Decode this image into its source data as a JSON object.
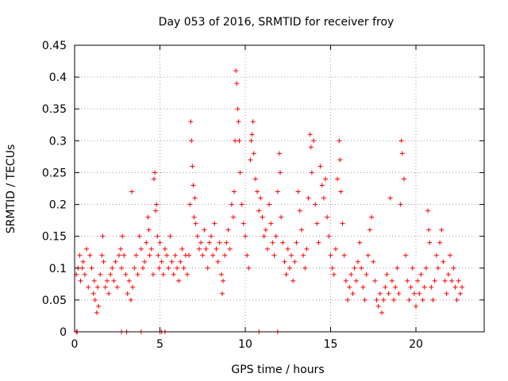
{
  "chart_data": {
    "type": "scatter",
    "title": "Day 053 of 2016, SRMTID for receiver froy",
    "xlabel": "GPS time / hours",
    "ylabel": "SRMTID / TECUs",
    "xlim": [
      0,
      24
    ],
    "ylim": [
      0,
      0.45
    ],
    "xticks": [
      0,
      5,
      10,
      15,
      20
    ],
    "yticks": [
      0,
      0.05,
      0.1,
      0.15,
      0.2,
      0.25,
      0.3,
      0.35,
      0.4,
      0.45
    ],
    "xtick_labels": [
      "0",
      "5",
      "10",
      "15",
      "20"
    ],
    "ytick_labels": [
      "0",
      "0.05",
      "0.1",
      "0.15",
      "0.2",
      "0.25",
      "0.3",
      "0.35",
      "0.4",
      "0.45"
    ],
    "grid": true,
    "marker": "+",
    "marker_color": "#ff0000",
    "series": [
      {
        "name": "SRMTID",
        "points": [
          [
            0.1,
            0.09
          ],
          [
            0.2,
            0.1
          ],
          [
            0.3,
            0.12
          ],
          [
            0.35,
            0.08
          ],
          [
            0.45,
            0.1
          ],
          [
            0.5,
            0.11
          ],
          [
            0.6,
            0.09
          ],
          [
            0.7,
            0.13
          ],
          [
            0.8,
            0.07
          ],
          [
            0.9,
            0.12
          ],
          [
            1.0,
            0.1
          ],
          [
            1.1,
            0.06
          ],
          [
            1.15,
            0.08
          ],
          [
            1.2,
            0.05
          ],
          [
            1.3,
            0.03
          ],
          [
            1.35,
            0.07
          ],
          [
            1.4,
            0.04
          ],
          [
            1.5,
            0.09
          ],
          [
            1.6,
            0.12
          ],
          [
            1.65,
            0.15
          ],
          [
            1.7,
            0.11
          ],
          [
            1.8,
            0.07
          ],
          [
            1.9,
            0.08
          ],
          [
            2.0,
            0.06
          ],
          [
            2.1,
            0.09
          ],
          [
            2.2,
            0.1
          ],
          [
            2.3,
            0.08
          ],
          [
            2.4,
            0.11
          ],
          [
            2.5,
            0.07
          ],
          [
            2.6,
            0.12
          ],
          [
            2.7,
            0.13
          ],
          [
            2.75,
            0.1
          ],
          [
            2.8,
            0.15
          ],
          [
            2.9,
            0.12
          ],
          [
            3.0,
            0.09
          ],
          [
            3.1,
            0.06
          ],
          [
            3.2,
            0.08
          ],
          [
            3.3,
            0.05
          ],
          [
            3.35,
            0.22
          ],
          [
            3.4,
            0.07
          ],
          [
            3.5,
            0.1
          ],
          [
            3.6,
            0.12
          ],
          [
            3.7,
            0.09
          ],
          [
            3.8,
            0.15
          ],
          [
            3.9,
            0.13
          ],
          [
            4.0,
            0.1
          ],
          [
            4.1,
            0.11
          ],
          [
            4.2,
            0.14
          ],
          [
            4.3,
            0.18
          ],
          [
            4.35,
            0.16
          ],
          [
            4.4,
            0.12
          ],
          [
            4.5,
            0.13
          ],
          [
            4.6,
            0.09
          ],
          [
            4.65,
            0.24
          ],
          [
            4.7,
            0.25
          ],
          [
            4.75,
            0.19
          ],
          [
            4.8,
            0.2
          ],
          [
            4.85,
            0.15
          ],
          [
            4.9,
            0.12
          ],
          [
            4.95,
            0.1
          ],
          [
            5.0,
            0.14
          ],
          [
            5.1,
            0.11
          ],
          [
            5.2,
            0.09
          ],
          [
            5.3,
            0.13
          ],
          [
            5.4,
            0.12
          ],
          [
            5.5,
            0.1
          ],
          [
            5.6,
            0.15
          ],
          [
            5.7,
            0.11
          ],
          [
            5.8,
            0.09
          ],
          [
            5.9,
            0.12
          ],
          [
            6.0,
            0.1
          ],
          [
            6.1,
            0.08
          ],
          [
            6.2,
            0.11
          ],
          [
            6.3,
            0.13
          ],
          [
            6.4,
            0.1
          ],
          [
            6.5,
            0.12
          ],
          [
            6.6,
            0.09
          ],
          [
            6.7,
            0.12
          ],
          [
            6.75,
            0.2
          ],
          [
            6.8,
            0.33
          ],
          [
            6.85,
            0.3
          ],
          [
            6.9,
            0.26
          ],
          [
            6.95,
            0.23
          ],
          [
            7.0,
            0.18
          ],
          [
            7.05,
            0.21
          ],
          [
            7.1,
            0.17
          ],
          [
            7.2,
            0.15
          ],
          [
            7.3,
            0.13
          ],
          [
            7.4,
            0.14
          ],
          [
            7.5,
            0.12
          ],
          [
            7.6,
            0.16
          ],
          [
            7.7,
            0.13
          ],
          [
            7.8,
            0.1
          ],
          [
            7.9,
            0.14
          ],
          [
            8.0,
            0.15
          ],
          [
            8.1,
            0.12
          ],
          [
            8.2,
            0.17
          ],
          [
            8.3,
            0.13
          ],
          [
            8.4,
            0.11
          ],
          [
            8.5,
            0.14
          ],
          [
            8.6,
            0.09
          ],
          [
            8.65,
            0.06
          ],
          [
            8.7,
            0.08
          ],
          [
            8.8,
            0.12
          ],
          [
            8.9,
            0.14
          ],
          [
            9.0,
            0.16
          ],
          [
            9.1,
            0.13
          ],
          [
            9.2,
            0.2
          ],
          [
            9.3,
            0.18
          ],
          [
            9.35,
            0.22
          ],
          [
            9.4,
            0.3
          ],
          [
            9.45,
            0.41
          ],
          [
            9.5,
            0.39
          ],
          [
            9.55,
            0.35
          ],
          [
            9.6,
            0.33
          ],
          [
            9.65,
            0.3
          ],
          [
            9.7,
            0.25
          ],
          [
            9.8,
            0.2
          ],
          [
            9.9,
            0.17
          ],
          [
            10.0,
            0.15
          ],
          [
            10.1,
            0.12
          ],
          [
            10.2,
            0.1
          ],
          [
            10.3,
            0.27
          ],
          [
            10.35,
            0.3
          ],
          [
            10.4,
            0.31
          ],
          [
            10.45,
            0.33
          ],
          [
            10.5,
            0.28
          ],
          [
            10.6,
            0.24
          ],
          [
            10.7,
            0.22
          ],
          [
            10.8,
            0.19
          ],
          [
            10.9,
            0.21
          ],
          [
            11.0,
            0.18
          ],
          [
            11.1,
            0.15
          ],
          [
            11.2,
            0.16
          ],
          [
            11.3,
            0.13
          ],
          [
            11.4,
            0.2
          ],
          [
            11.5,
            0.17
          ],
          [
            11.6,
            0.14
          ],
          [
            11.7,
            0.12
          ],
          [
            11.8,
            0.15
          ],
          [
            11.9,
            0.22
          ],
          [
            12.0,
            0.28
          ],
          [
            12.05,
            0.25
          ],
          [
            12.1,
            0.18
          ],
          [
            12.2,
            0.14
          ],
          [
            12.3,
            0.11
          ],
          [
            12.4,
            0.09
          ],
          [
            12.5,
            0.13
          ],
          [
            12.6,
            0.1
          ],
          [
            12.7,
            0.12
          ],
          [
            12.8,
            0.08
          ],
          [
            12.9,
            0.11
          ],
          [
            13.0,
            0.14
          ],
          [
            13.1,
            0.22
          ],
          [
            13.2,
            0.19
          ],
          [
            13.3,
            0.16
          ],
          [
            13.4,
            0.12
          ],
          [
            13.5,
            0.1
          ],
          [
            13.6,
            0.13
          ],
          [
            13.7,
            0.21
          ],
          [
            13.8,
            0.31
          ],
          [
            13.85,
            0.29
          ],
          [
            13.9,
            0.25
          ],
          [
            14.0,
            0.3
          ],
          [
            14.1,
            0.2
          ],
          [
            14.2,
            0.17
          ],
          [
            14.3,
            0.14
          ],
          [
            14.4,
            0.26
          ],
          [
            14.5,
            0.23
          ],
          [
            14.6,
            0.21
          ],
          [
            14.7,
            0.24
          ],
          [
            14.8,
            0.18
          ],
          [
            14.9,
            0.15
          ],
          [
            15.0,
            0.12
          ],
          [
            15.1,
            0.1
          ],
          [
            15.2,
            0.09
          ],
          [
            15.3,
            0.13
          ],
          [
            15.4,
            0.24
          ],
          [
            15.5,
            0.3
          ],
          [
            15.55,
            0.27
          ],
          [
            15.6,
            0.22
          ],
          [
            15.7,
            0.17
          ],
          [
            15.8,
            0.12
          ],
          [
            15.9,
            0.08
          ],
          [
            16.0,
            0.05
          ],
          [
            16.1,
            0.07
          ],
          [
            16.2,
            0.09
          ],
          [
            16.3,
            0.06
          ],
          [
            16.4,
            0.1
          ],
          [
            16.5,
            0.08
          ],
          [
            16.6,
            0.11
          ],
          [
            16.7,
            0.14
          ],
          [
            16.8,
            0.1
          ],
          [
            16.9,
            0.07
          ],
          [
            17.0,
            0.05
          ],
          [
            17.1,
            0.09
          ],
          [
            17.2,
            0.12
          ],
          [
            17.3,
            0.16
          ],
          [
            17.4,
            0.18
          ],
          [
            17.5,
            0.11
          ],
          [
            17.6,
            0.08
          ],
          [
            17.7,
            0.05
          ],
          [
            17.8,
            0.04
          ],
          [
            17.9,
            0.06
          ],
          [
            18.0,
            0.03
          ],
          [
            18.1,
            0.05
          ],
          [
            18.2,
            0.07
          ],
          [
            18.3,
            0.09
          ],
          [
            18.4,
            0.06
          ],
          [
            18.5,
            0.21
          ],
          [
            18.6,
            0.08
          ],
          [
            18.7,
            0.05
          ],
          [
            18.8,
            0.07
          ],
          [
            18.9,
            0.1
          ],
          [
            19.0,
            0.06
          ],
          [
            19.1,
            0.2
          ],
          [
            19.15,
            0.3
          ],
          [
            19.2,
            0.28
          ],
          [
            19.3,
            0.24
          ],
          [
            19.4,
            0.12
          ],
          [
            19.5,
            0.08
          ],
          [
            19.6,
            0.05
          ],
          [
            19.7,
            0.07
          ],
          [
            19.8,
            0.1
          ],
          [
            19.9,
            0.06
          ],
          [
            20.0,
            0.04
          ],
          [
            20.1,
            0.08
          ],
          [
            20.2,
            0.06
          ],
          [
            20.3,
            0.09
          ],
          [
            20.4,
            0.05
          ],
          [
            20.5,
            0.07
          ],
          [
            20.6,
            0.1
          ],
          [
            20.7,
            0.19
          ],
          [
            20.75,
            0.16
          ],
          [
            20.8,
            0.14
          ],
          [
            20.9,
            0.07
          ],
          [
            21.0,
            0.05
          ],
          [
            21.1,
            0.08
          ],
          [
            21.2,
            0.12
          ],
          [
            21.3,
            0.1
          ],
          [
            21.4,
            0.14
          ],
          [
            21.5,
            0.16
          ],
          [
            21.6,
            0.11
          ],
          [
            21.7,
            0.08
          ],
          [
            21.8,
            0.06
          ],
          [
            21.9,
            0.09
          ],
          [
            22.0,
            0.12
          ],
          [
            22.1,
            0.08
          ],
          [
            22.2,
            0.1
          ],
          [
            22.3,
            0.07
          ],
          [
            22.4,
            0.05
          ],
          [
            22.5,
            0.08
          ],
          [
            22.6,
            0.06
          ],
          [
            22.7,
            0.07
          ],
          [
            0.1,
            0.0
          ],
          [
            0.15,
            0.0
          ],
          [
            2.75,
            0.0
          ],
          [
            3.05,
            0.0
          ],
          [
            3.9,
            0.0
          ],
          [
            5.0,
            0.0
          ],
          [
            5.1,
            0.0
          ],
          [
            5.3,
            0.0
          ],
          [
            10.8,
            0.0
          ],
          [
            11.9,
            0.0
          ]
        ]
      }
    ]
  }
}
